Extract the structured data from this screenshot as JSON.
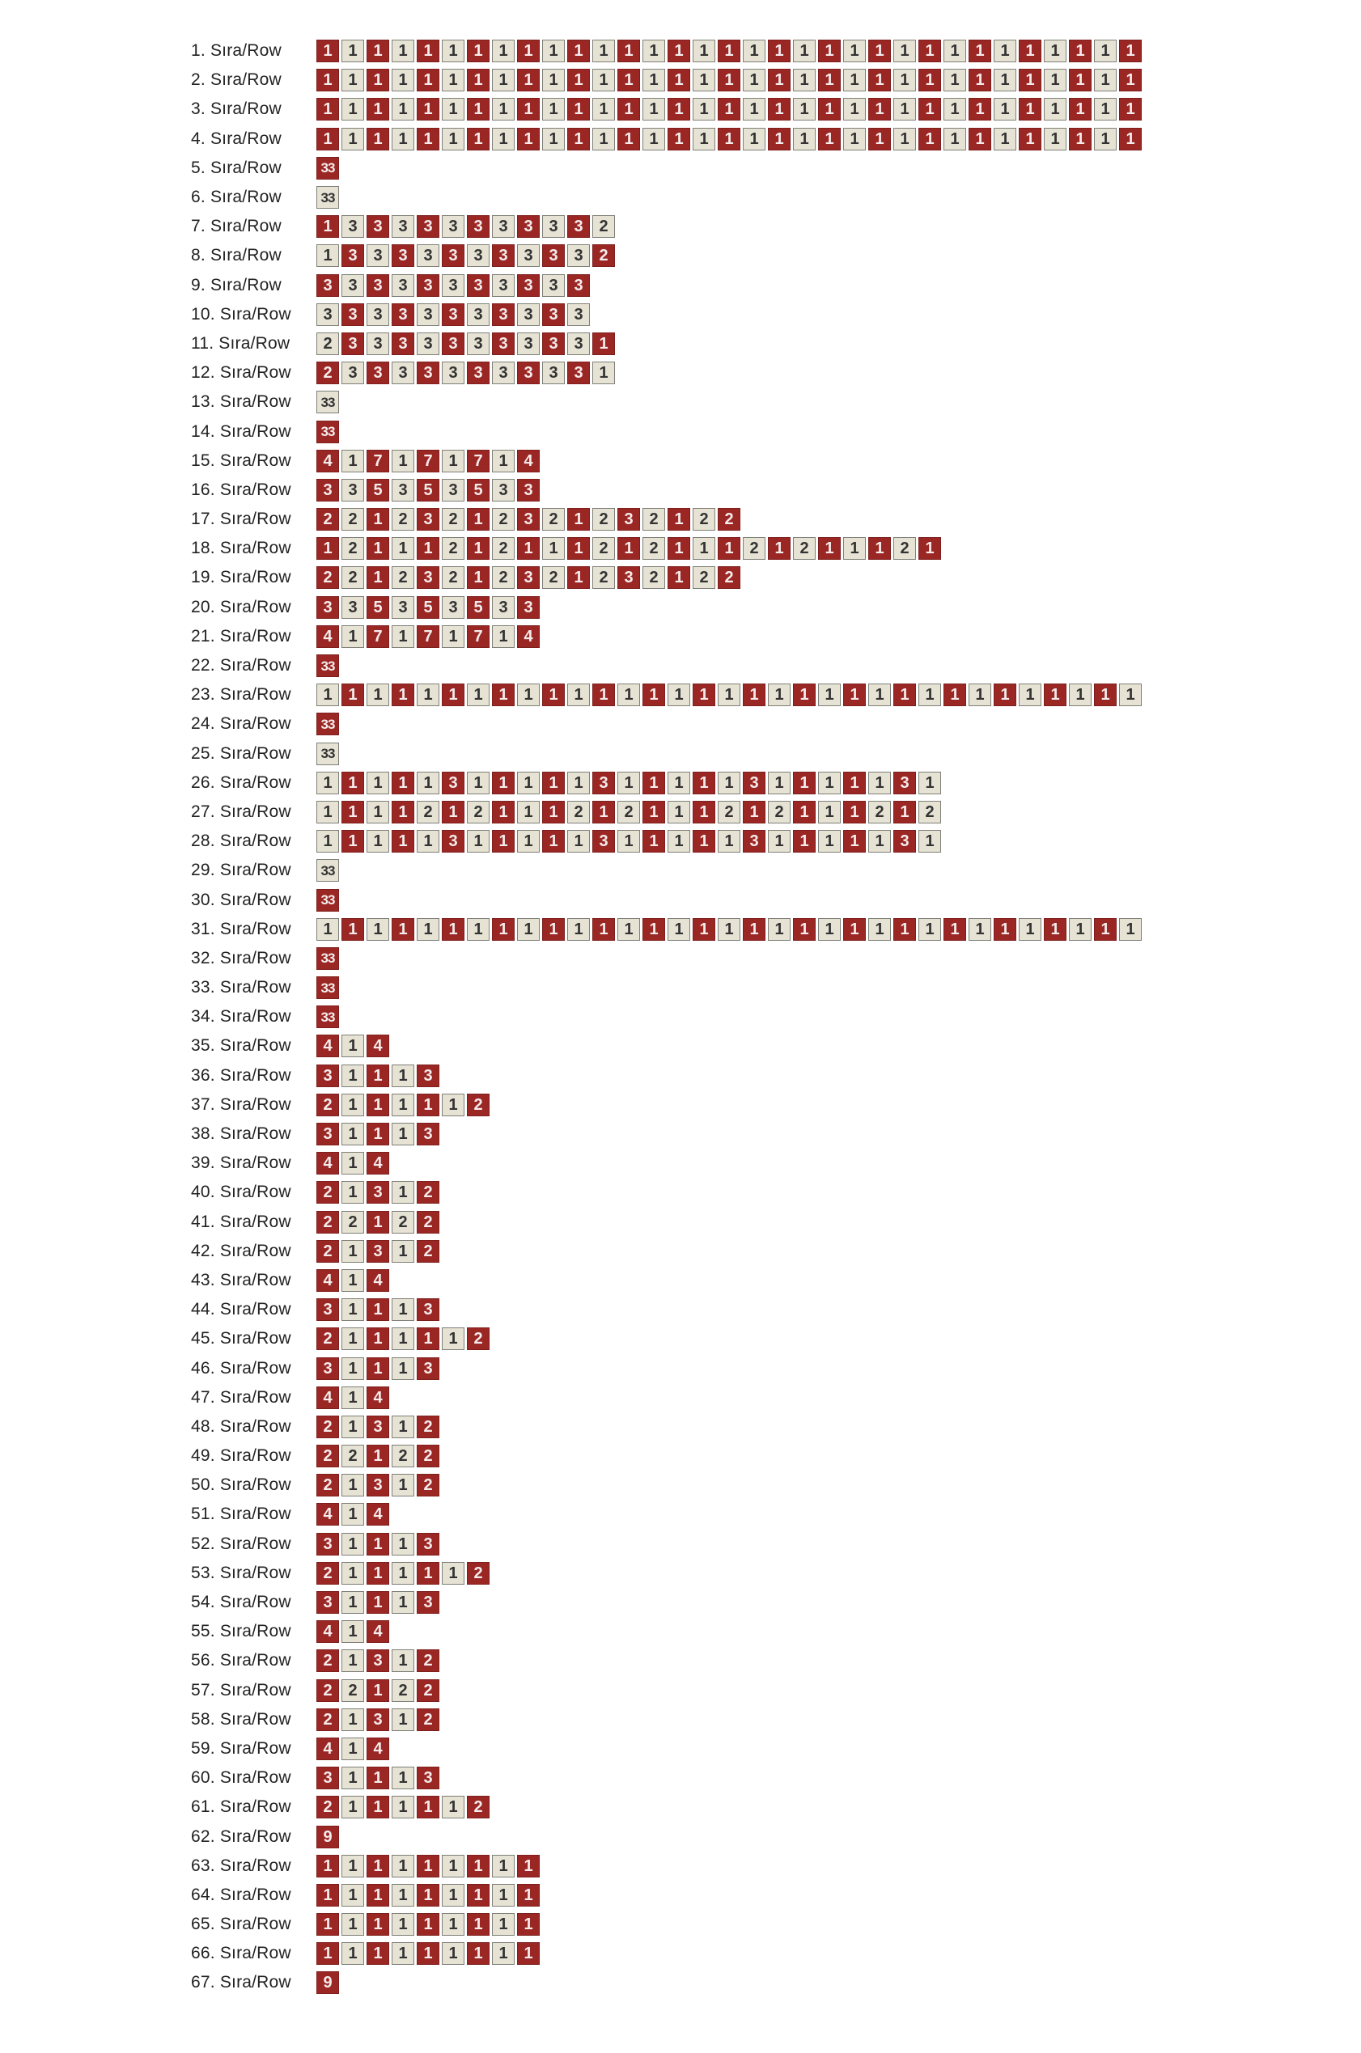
{
  "colors": {
    "red": "#9b2724",
    "beige": "#e6e3d4"
  },
  "legend_note": "",
  "rows": [
    {
      "label": "1. Sıra/Row",
      "cells": "r1 b1 r1 b1 r1 b1 r1 b1 r1 b1 r1 b1 r1 b1 r1 b1 r1 b1 r1 b1 r1 b1 r1 b1 r1 b1 r1 b1 r1 b1 r1 b1 r1"
    },
    {
      "label": "2. Sıra/Row",
      "cells": "r1 b1 r1 b1 r1 b1 r1 b1 r1 b1 r1 b1 r1 b1 r1 b1 r1 b1 r1 b1 r1 b1 r1 b1 r1 b1 r1 b1 r1 b1 r1 b1 r1"
    },
    {
      "label": "3. Sıra/Row",
      "cells": "r1 b1 r1 b1 r1 b1 r1 b1 r1 b1 r1 b1 r1 b1 r1 b1 r1 b1 r1 b1 r1 b1 r1 b1 r1 b1 r1 b1 r1 b1 r1 b1 r1"
    },
    {
      "label": "4. Sıra/Row",
      "cells": "r1 b1 r1 b1 r1 b1 r1 b1 r1 b1 r1 b1 r1 b1 r1 b1 r1 b1 r1 b1 r1 b1 r1 b1 r1 b1 r1 b1 r1 b1 r1 b1 r1"
    },
    {
      "label": "5. Sıra/Row",
      "cells": "r33"
    },
    {
      "label": "6. Sıra/Row",
      "cells": "b33"
    },
    {
      "label": "7. Sıra/Row",
      "cells": "r1 b3 r3 b3 r3 b3 r3 b3 r3 b3 r3 b2"
    },
    {
      "label": "8. Sıra/Row",
      "cells": "b1 r3 b3 r3 b3 r3 b3 r3 b3 r3 b3 r2"
    },
    {
      "label": "9. Sıra/Row",
      "cells": "r3 b3 r3 b3 r3 b3 r3 b3 r3 b3 r3"
    },
    {
      "label": "10. Sıra/Row",
      "cells": "b3 r3 b3 r3 b3 r3 b3 r3 b3 r3 b3"
    },
    {
      "label": "11. Sıra/Row",
      "cells": "b2 r3 b3 r3 b3 r3 b3 r3 b3 r3 b3 r1"
    },
    {
      "label": "12. Sıra/Row",
      "cells": "r2 b3 r3 b3 r3 b3 r3 b3 r3 b3 r3 b1"
    },
    {
      "label": "13. Sıra/Row",
      "cells": "b33"
    },
    {
      "label": "14. Sıra/Row",
      "cells": "r33"
    },
    {
      "label": "15. Sıra/Row",
      "cells": "r4 b1 r7 b1 r7 b1 r7 b1 r4"
    },
    {
      "label": "16. Sıra/Row",
      "cells": "r3 b3 r5 b3 r5 b3 r5 b3 r3"
    },
    {
      "label": "17. Sıra/Row",
      "cells": "r2 b2 r1 b2 r3 b2 r1 b2 r3 b2 r1 b2 r3 b2 r1 b2 r2"
    },
    {
      "label": "18. Sıra/Row",
      "cells": "r1 b2 r1 b1 r1 b2 r1 b2 r1 b1 r1 b2 r1 b2 r1 b1 r1 b2 r1 b2 r1 b1 r1 b2 r1"
    },
    {
      "label": "19. Sıra/Row",
      "cells": "r2 b2 r1 b2 r3 b2 r1 b2 r3 b2 r1 b2 r3 b2 r1 b2 r2"
    },
    {
      "label": "20. Sıra/Row",
      "cells": "r3 b3 r5 b3 r5 b3 r5 b3 r3"
    },
    {
      "label": "21. Sıra/Row",
      "cells": "r4 b1 r7 b1 r7 b1 r7 b1 r4"
    },
    {
      "label": "22. Sıra/Row",
      "cells": "r33"
    },
    {
      "label": "23. Sıra/Row",
      "cells": "b1 r1 b1 r1 b1 r1 b1 r1 b1 r1 b1 r1 b1 r1 b1 r1 b1 r1 b1 r1 b1 r1 b1 r1 b1 r1 b1 r1 b1 r1 b1 r1 b1"
    },
    {
      "label": "24. Sıra/Row",
      "cells": "r33"
    },
    {
      "label": "25. Sıra/Row",
      "cells": "b33"
    },
    {
      "label": "26. Sıra/Row",
      "cells": "b1 r1 b1 r1 b1 r3 b1 r1 b1 r1 b1 r3 b1 r1 b1 r1 b1 r3 b1 r1 b1 r1 b1 r3 b1"
    },
    {
      "label": "27. Sıra/Row",
      "cells": "b1 r1 b1 r1 b2 r1 b2 r1 b1 r1 b2 r1 b2 r1 b1 r1 b2 r1 b2 r1 b1 r1 b2 r1 b2"
    },
    {
      "label": "28. Sıra/Row",
      "cells": "b1 r1 b1 r1 b1 r3 b1 r1 b1 r1 b1 r3 b1 r1 b1 r1 b1 r3 b1 r1 b1 r1 b1 r3 b1"
    },
    {
      "label": "29. Sıra/Row",
      "cells": "b33"
    },
    {
      "label": "30. Sıra/Row",
      "cells": "r33"
    },
    {
      "label": "31. Sıra/Row",
      "cells": "b1 r1 b1 r1 b1 r1 b1 r1 b1 r1 b1 r1 b1 r1 b1 r1 b1 r1 b1 r1 b1 r1 b1 r1 b1 r1 b1 r1 b1 r1 b1 r1 b1"
    },
    {
      "label": "32. Sıra/Row",
      "cells": "r33"
    },
    {
      "label": "33. Sıra/Row",
      "cells": "r33"
    },
    {
      "label": "34. Sıra/Row",
      "cells": "r33"
    },
    {
      "label": "35. Sıra/Row",
      "cells": "r4 b1 r4"
    },
    {
      "label": "36. Sıra/Row",
      "cells": "r3 b1 r1 b1 r3"
    },
    {
      "label": "37. Sıra/Row",
      "cells": "r2 b1 r1 b1 r1 b1 r2"
    },
    {
      "label": "38. Sıra/Row",
      "cells": "r3 b1 r1 b1 r3"
    },
    {
      "label": "39. Sıra/Row",
      "cells": "r4 b1 r4"
    },
    {
      "label": "40. Sıra/Row",
      "cells": "r2 b1 r3 b1 r2"
    },
    {
      "label": "41. Sıra/Row",
      "cells": "r2 b2 r1 b2 r2"
    },
    {
      "label": "42. Sıra/Row",
      "cells": "r2 b1 r3 b1 r2"
    },
    {
      "label": "43. Sıra/Row",
      "cells": "r4 b1 r4"
    },
    {
      "label": "44. Sıra/Row",
      "cells": "r3 b1 r1 b1 r3"
    },
    {
      "label": "45. Sıra/Row",
      "cells": "r2 b1 r1 b1 r1 b1 r2"
    },
    {
      "label": "46. Sıra/Row",
      "cells": "r3 b1 r1 b1 r3"
    },
    {
      "label": "47. Sıra/Row",
      "cells": "r4 b1 r4"
    },
    {
      "label": "48. Sıra/Row",
      "cells": "r2 b1 r3 b1 r2"
    },
    {
      "label": "49. Sıra/Row",
      "cells": "r2 b2 r1 b2 r2"
    },
    {
      "label": "50. Sıra/Row",
      "cells": "r2 b1 r3 b1 r2"
    },
    {
      "label": "51. Sıra/Row",
      "cells": "r4 b1 r4"
    },
    {
      "label": "52. Sıra/Row",
      "cells": "r3 b1 r1 b1 r3"
    },
    {
      "label": "53. Sıra/Row",
      "cells": "r2 b1 r1 b1 r1 b1 r2"
    },
    {
      "label": "54. Sıra/Row",
      "cells": "r3 b1 r1 b1 r3"
    },
    {
      "label": "55. Sıra/Row",
      "cells": "r4 b1 r4"
    },
    {
      "label": "56. Sıra/Row",
      "cells": "r2 b1 r3 b1 r2"
    },
    {
      "label": "57. Sıra/Row",
      "cells": "r2 b2 r1 b2 r2"
    },
    {
      "label": "58. Sıra/Row",
      "cells": "r2 b1 r3 b1 r2"
    },
    {
      "label": "59. Sıra/Row",
      "cells": "r4 b1 r4"
    },
    {
      "label": "60. Sıra/Row",
      "cells": "r3 b1 r1 b1 r3"
    },
    {
      "label": "61. Sıra/Row",
      "cells": "r2 b1 r1 b1 r1 b1 r2"
    },
    {
      "label": "62. Sıra/Row",
      "cells": "r9"
    },
    {
      "label": "63. Sıra/Row",
      "cells": "r1 b1 r1 b1 r1 b1 r1 b1 r1"
    },
    {
      "label": "64. Sıra/Row",
      "cells": "r1 b1 r1 b1 r1 b1 r1 b1 r1"
    },
    {
      "label": "65. Sıra/Row",
      "cells": "r1 b1 r1 b1 r1 b1 r1 b1 r1"
    },
    {
      "label": "66. Sıra/Row",
      "cells": "r1 b1 r1 b1 r1 b1 r1 b1 r1"
    },
    {
      "label": "67. Sıra/Row",
      "cells": "r9"
    }
  ]
}
